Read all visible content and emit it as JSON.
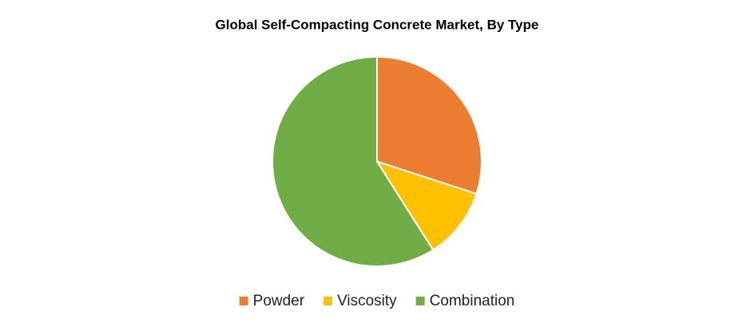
{
  "chart_data": {
    "type": "pie",
    "title": "Global Self-Compacting Concrete Market, By Type",
    "categories": [
      "Powder",
      "Viscosity",
      "Combination"
    ],
    "values": [
      30,
      11,
      59
    ],
    "colors": [
      "#ed7d31",
      "#ffc000",
      "#70ad47"
    ],
    "legend": "bottom"
  }
}
